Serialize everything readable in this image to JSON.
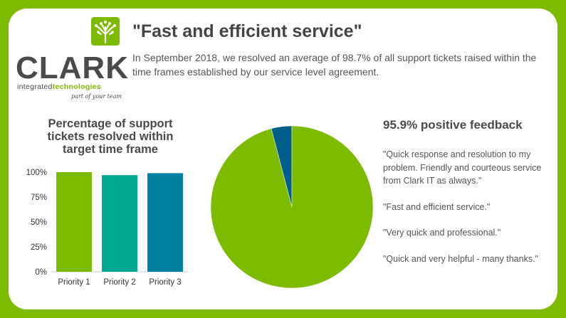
{
  "logo": {
    "word": "CLARK",
    "sub_plain": "integrated",
    "sub_green": "technologies",
    "tagline": "part of your team"
  },
  "header": {
    "title": "\"Fast and efficient service\"",
    "intro": "In September 2018, we resolved an average of 98.7% of all support tickets raised within the time frames established by our service level agreement."
  },
  "colors": {
    "background": "#7dbb00",
    "green": "#7dbb00",
    "teal": "#00a98f",
    "blue": "#00819f",
    "navy": "#005e8a",
    "text": "#444444"
  },
  "chart_data": [
    {
      "type": "bar",
      "title_lines": [
        "Percentage of support",
        "tickets resolved within",
        "target time frame"
      ],
      "categories": [
        "Priority 1",
        "Priority 2",
        "Priority 3"
      ],
      "values": [
        100,
        97,
        99
      ],
      "unit": "%",
      "ylim": [
        0,
        100
      ],
      "yticks": [
        0,
        25,
        50,
        75,
        100
      ],
      "ytick_labels": [
        "0%",
        "25%",
        "50%",
        "75%",
        "100%"
      ],
      "bar_colors": [
        "#7dbb00",
        "#00a98f",
        "#00819f"
      ],
      "grid": false
    },
    {
      "type": "pie",
      "slices": [
        {
          "value": 95.9,
          "color": "#7dbb00"
        },
        {
          "value": 4.1,
          "color": "#005e8a"
        }
      ]
    }
  ],
  "feedback": {
    "title": "95.9% positive feedback",
    "quotes": [
      "\"Quick response and resolution to my problem. Friendly and courteous service from Clark IT as always.\"",
      "\"Fast and efficient service.\"",
      "\"Very quick and professional.\"",
      "\"Quick and very helpful - many thanks.\""
    ]
  }
}
